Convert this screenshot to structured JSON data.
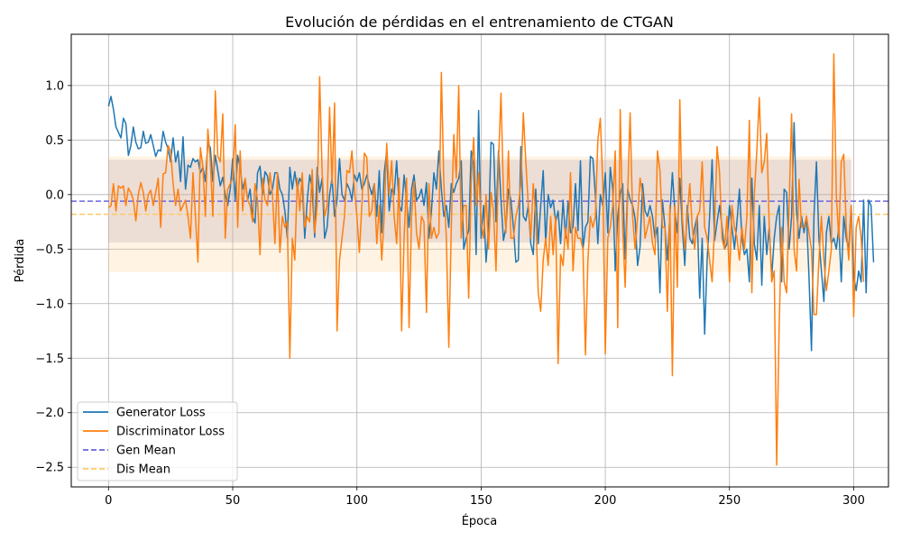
{
  "chart_data": {
    "type": "line",
    "title": "Evolución de pérdidas en el entrenamiento de CTGAN",
    "xlabel": "Época",
    "ylabel": "Pérdida",
    "xlim": [
      -15,
      314
    ],
    "ylim": [
      -2.68,
      1.47
    ],
    "xticks": [
      0,
      50,
      100,
      150,
      200,
      250,
      300
    ],
    "yticks": [
      -2.5,
      -2.0,
      -1.5,
      -1.0,
      -0.5,
      0.0,
      0.5,
      1.0
    ],
    "xtick_labels": [
      "0",
      "50",
      "100",
      "150",
      "200",
      "250",
      "300"
    ],
    "ytick_labels": [
      "−2.5",
      "−2.0",
      "−1.5",
      "−1.0",
      "−0.5",
      "0.0",
      "0.5",
      "1.0"
    ],
    "grid": true,
    "legend_position": "lower-left",
    "series": [
      {
        "name": "Generator Loss",
        "color": "#1f77b4",
        "style": "solid",
        "x_start": 0,
        "x_step": 1,
        "values": [
          0.81,
          0.9,
          0.78,
          0.62,
          0.57,
          0.52,
          0.7,
          0.65,
          0.36,
          0.45,
          0.62,
          0.48,
          0.42,
          0.43,
          0.58,
          0.47,
          0.48,
          0.55,
          0.45,
          0.35,
          0.41,
          0.4,
          0.58,
          0.48,
          0.42,
          0.3,
          0.52,
          0.3,
          0.4,
          0.12,
          0.53,
          0.05,
          0.27,
          0.25,
          0.33,
          0.3,
          0.32,
          0.2,
          0.25,
          0.12,
          0.47,
          0.43,
          0.12,
          0.36,
          0.22,
          0.08,
          0.16,
          0.0,
          -0.1,
          0.05,
          0.33,
          -0.05,
          0.36,
          0.25,
          0.05,
          0.14,
          -0.05,
          0.05,
          -0.2,
          -0.26,
          0.2,
          0.26,
          0.0,
          0.21,
          0.17,
          0.0,
          0.05,
          0.2,
          0.2,
          0.05,
          0.0,
          -0.15,
          -0.4,
          0.25,
          0.05,
          0.21,
          0.05,
          0.15,
          0.1,
          -0.4,
          -0.05,
          0.18,
          0.05,
          -0.39,
          0.25,
          0.02,
          0.15,
          -0.4,
          -0.3,
          0.0,
          0.15,
          -0.2,
          -0.05,
          0.33,
          0.0,
          -0.05,
          0.1,
          0.05,
          -0.05,
          0.18,
          0.12,
          0.2,
          0.05,
          0.1,
          0.18,
          0.08,
          0.0,
          0.1,
          -0.2,
          0.22,
          -0.35,
          0.2,
          0.4,
          -0.15,
          0.05,
          0.0,
          0.31,
          -0.1,
          -0.15,
          0.18,
          -0.05,
          -0.3,
          0.05,
          0.18,
          -0.05,
          -0.02,
          0.05,
          -0.1,
          0.11,
          -0.4,
          -0.15,
          0.2,
          0.05,
          0.4,
          0.05,
          -0.2,
          -0.1,
          -0.3,
          0.1,
          0.02,
          0.1,
          0.15,
          0.31,
          -0.5,
          -0.4,
          -0.33,
          0.4,
          0.28,
          -0.55,
          0.77,
          -0.4,
          -0.1,
          -0.62,
          -0.3,
          0.48,
          0.46,
          -0.25,
          0.4,
          -0.05,
          -0.42,
          -0.3,
          0.05,
          -0.05,
          -0.3,
          -0.62,
          -0.6,
          0.44,
          -0.2,
          -0.24,
          -0.1,
          -0.45,
          -0.55,
          0.05,
          -0.45,
          -0.1,
          0.22,
          -0.45,
          0.0,
          -0.12,
          -0.05,
          -0.25,
          -0.15,
          -0.45,
          -0.05,
          -0.4,
          -0.07,
          -0.35,
          -0.3,
          0.1,
          -0.33,
          0.31,
          -0.5,
          -0.3,
          -0.25,
          0.35,
          0.33,
          0.0,
          -0.45,
          0.0,
          -0.1,
          0.2,
          -0.35,
          0.25,
          0.05,
          -0.7,
          -0.2,
          0.01,
          0.1,
          -0.59,
          0.05,
          -0.05,
          -0.1,
          -0.22,
          -0.65,
          -0.48,
          0.1,
          -0.15,
          -0.2,
          -0.1,
          -0.2,
          -0.4,
          -0.3,
          -0.9,
          -0.05,
          -0.3,
          -0.6,
          -0.2,
          0.2,
          -0.15,
          -0.35,
          0.15,
          -0.3,
          -0.65,
          -0.1,
          -0.4,
          -0.45,
          -0.3,
          -0.2,
          -0.95,
          -0.4,
          -1.28,
          -0.6,
          -0.2,
          0.32,
          -0.42,
          -0.25,
          -0.1,
          -0.3,
          -0.5,
          -0.45,
          -0.1,
          -0.3,
          -0.5,
          -0.25,
          0.05,
          -0.4,
          -0.55,
          -0.5,
          -0.8,
          0.15,
          -0.45,
          -0.6,
          -0.1,
          -0.83,
          -0.2,
          -0.55,
          -0.3,
          -0.75,
          -0.4,
          -0.2,
          -0.1,
          -0.8,
          0.05,
          0.02,
          -0.5,
          -0.2,
          0.66,
          -0.15,
          -0.4,
          -0.2,
          -0.35,
          -0.2,
          -0.75,
          -1.43,
          -0.2,
          0.3,
          -0.4,
          -0.7,
          -0.98,
          -0.35,
          -0.2,
          -0.45,
          -0.4,
          -0.5,
          -0.3,
          -0.8,
          -0.2,
          -0.4,
          -0.5,
          -0.1,
          -0.75,
          -0.88,
          -0.7,
          -0.8,
          -0.05,
          -0.9,
          -0.05,
          -0.1,
          -0.62
        ]
      },
      {
        "name": "Discriminator Loss",
        "color": "#ff7f0e",
        "style": "solid",
        "x_start": 0,
        "x_step": 1,
        "values": [
          -0.12,
          -0.1,
          0.1,
          -0.15,
          0.08,
          0.06,
          0.08,
          -0.1,
          0.06,
          0.02,
          -0.05,
          -0.24,
          0.0,
          0.11,
          0.02,
          -0.15,
          0.0,
          0.04,
          -0.1,
          0.02,
          0.15,
          -0.3,
          0.19,
          0.2,
          0.45,
          0.4,
          0.1,
          -0.1,
          0.05,
          -0.15,
          -0.1,
          -0.05,
          -0.2,
          -0.4,
          0.2,
          -0.2,
          -0.62,
          0.43,
          0.25,
          -0.2,
          0.6,
          0.3,
          -0.2,
          0.95,
          0.35,
          0.3,
          0.74,
          -0.4,
          0.05,
          0.1,
          0.15,
          0.64,
          -0.3,
          0.4,
          -0.15,
          0.15,
          -0.05,
          -0.1,
          -0.25,
          0.1,
          -0.05,
          -0.55,
          0.15,
          -0.05,
          -0.1,
          0.2,
          0.0,
          -0.45,
          0.2,
          -0.53,
          -0.2,
          -0.3,
          -0.25,
          -1.5,
          -0.4,
          -0.6,
          0.15,
          -0.15,
          0.2,
          -0.3,
          -0.2,
          -0.25,
          0.23,
          -0.35,
          -0.1,
          1.08,
          0.2,
          -0.2,
          -0.1,
          0.8,
          0.1,
          0.84,
          -1.25,
          -0.6,
          -0.4,
          -0.2,
          0.22,
          0.2,
          0.4,
          0.05,
          -0.2,
          -0.53,
          -0.1,
          0.38,
          0.34,
          -0.2,
          -0.15,
          0.1,
          -0.45,
          -0.1,
          -0.6,
          -0.2,
          0.47,
          0.0,
          0.31,
          -0.2,
          -0.45,
          0.15,
          -1.25,
          -0.4,
          0.15,
          -1.22,
          -0.2,
          0.12,
          -0.35,
          -0.5,
          -0.2,
          -0.25,
          -1.08,
          0.1,
          -0.4,
          -0.3,
          -0.4,
          -0.35,
          1.12,
          0.1,
          -0.4,
          -1.4,
          -0.3,
          0.55,
          0.15,
          1.0,
          -0.4,
          -0.1,
          -0.1,
          -0.95,
          0.1,
          0.52,
          -0.1,
          0.2,
          -0.25,
          -0.4,
          0.0,
          -0.5,
          0.02,
          -0.15,
          -0.7,
          0.3,
          0.93,
          0.0,
          -0.35,
          0.4,
          -0.4,
          -0.4,
          -0.2,
          -0.1,
          0.1,
          0.75,
          0.3,
          -0.1,
          -0.4,
          0.1,
          -0.2,
          -0.9,
          -1.07,
          -0.6,
          -0.4,
          -0.65,
          -0.2,
          -0.55,
          -0.2,
          -1.55,
          -0.55,
          -0.65,
          -0.3,
          -0.5,
          0.2,
          -0.7,
          -0.3,
          -0.4,
          -0.4,
          -0.5,
          -1.47,
          -0.6,
          -0.2,
          -0.3,
          -0.2,
          0.5,
          0.7,
          0.1,
          -1.46,
          -0.4,
          -0.3,
          -0.1,
          0.4,
          -1.22,
          0.78,
          -0.3,
          -0.85,
          0.0,
          0.75,
          -0.2,
          -0.5,
          -0.2,
          0.15,
          0.0,
          -0.4,
          -0.3,
          -0.2,
          -0.45,
          -0.55,
          0.4,
          0.22,
          -0.3,
          -0.3,
          -1.07,
          -0.1,
          -1.66,
          -0.1,
          -0.85,
          0.87,
          -0.2,
          -0.5,
          -0.2,
          0.1,
          -0.3,
          -0.5,
          -0.2,
          -0.15,
          0.3,
          -0.3,
          -0.4,
          -0.6,
          -0.8,
          -0.3,
          0.44,
          0.2,
          -0.4,
          -0.5,
          -0.2,
          -0.8,
          -0.1,
          -0.3,
          -0.4,
          -0.6,
          -0.3,
          -0.5,
          -0.2,
          0.68,
          -0.9,
          0.0,
          0.4,
          0.89,
          0.2,
          0.3,
          0.56,
          -0.3,
          -0.8,
          -0.7,
          -2.48,
          -1.2,
          -0.3,
          -0.8,
          -0.9,
          -0.1,
          0.74,
          -0.5,
          -0.7,
          0.14,
          -0.3,
          -0.3,
          -0.2,
          -0.35,
          -0.5,
          -1.1,
          -1.1,
          -0.6,
          -0.2,
          -0.6,
          -0.88,
          -0.7,
          -0.5,
          1.29,
          0.0,
          -0.4,
          0.3,
          0.37,
          -0.3,
          -0.6,
          -0.1,
          -1.12,
          -0.3,
          -0.2,
          -0.4,
          -0.8
        ]
      },
      {
        "name": "Gen Mean",
        "color": "#6a66e0",
        "style": "dashed",
        "value": -0.06
      },
      {
        "name": "Dis Mean",
        "color": "#ffc966",
        "style": "dashed",
        "value": -0.18
      }
    ],
    "bands": [
      {
        "series": "Gen Mean",
        "color": "#8a6fa8",
        "opacity": 0.22,
        "lower": -0.44,
        "upper": 0.32,
        "x_range": [
          0,
          299
        ]
      },
      {
        "series": "Dis Mean",
        "color": "#ffd999",
        "opacity": 0.28,
        "lower": -0.71,
        "upper": 0.35,
        "x_range": [
          0,
          299
        ]
      }
    ]
  }
}
